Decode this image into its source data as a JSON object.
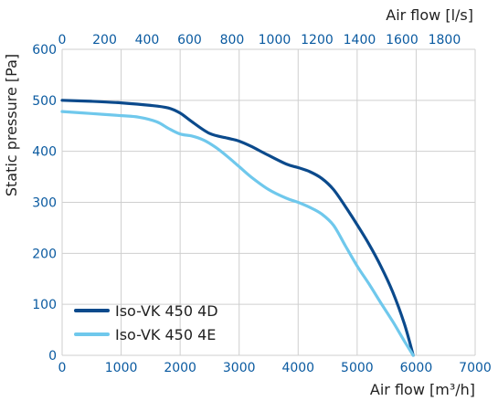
{
  "chart_data": {
    "type": "line",
    "xlabel": "Air flow [m³/h]",
    "x2label": "Air flow [l/s]",
    "ylabel": "Static pressure [Pa]",
    "xlim": [
      0,
      7000
    ],
    "x2lim": [
      0,
      1944.4
    ],
    "ylim": [
      0,
      600
    ],
    "xticks": [
      "0",
      "1000",
      "2000",
      "3000",
      "4000",
      "5000",
      "6000",
      "7000"
    ],
    "x2ticks": [
      "0",
      "200",
      "400",
      "600",
      "800",
      "1000",
      "1200",
      "1400",
      "1600",
      "1800"
    ],
    "yticks": [
      "0",
      "100",
      "200",
      "300",
      "400",
      "500",
      "600"
    ],
    "grid": true,
    "legend": "bottom-left",
    "series": [
      {
        "name": "Iso-VK 450 4D",
        "color": "#0b4a8c",
        "x": [
          0,
          500,
          1000,
          1500,
          1800,
          2000,
          2200,
          2500,
          2800,
          3000,
          3200,
          3500,
          3800,
          4000,
          4200,
          4400,
          4600,
          4800,
          5000,
          5200,
          5400,
          5600,
          5800,
          5950
        ],
        "y": [
          500,
          498,
          495,
          490,
          485,
          475,
          458,
          435,
          426,
          420,
          410,
          392,
          375,
          368,
          360,
          347,
          325,
          292,
          256,
          218,
          175,
          125,
          62,
          0
        ]
      },
      {
        "name": "Iso-VK 450 4E",
        "color": "#6fc8ec",
        "x": [
          0,
          500,
          1000,
          1300,
          1600,
          1800,
          2000,
          2200,
          2400,
          2600,
          2800,
          3000,
          3200,
          3500,
          3800,
          4000,
          4200,
          4400,
          4600,
          4800,
          5000,
          5200,
          5400,
          5600,
          5800,
          5950
        ],
        "y": [
          478,
          474,
          470,
          467,
          458,
          445,
          434,
          430,
          422,
          408,
          390,
          370,
          350,
          325,
          308,
          300,
          290,
          277,
          255,
          215,
          175,
          140,
          103,
          67,
          28,
          0
        ]
      }
    ]
  }
}
